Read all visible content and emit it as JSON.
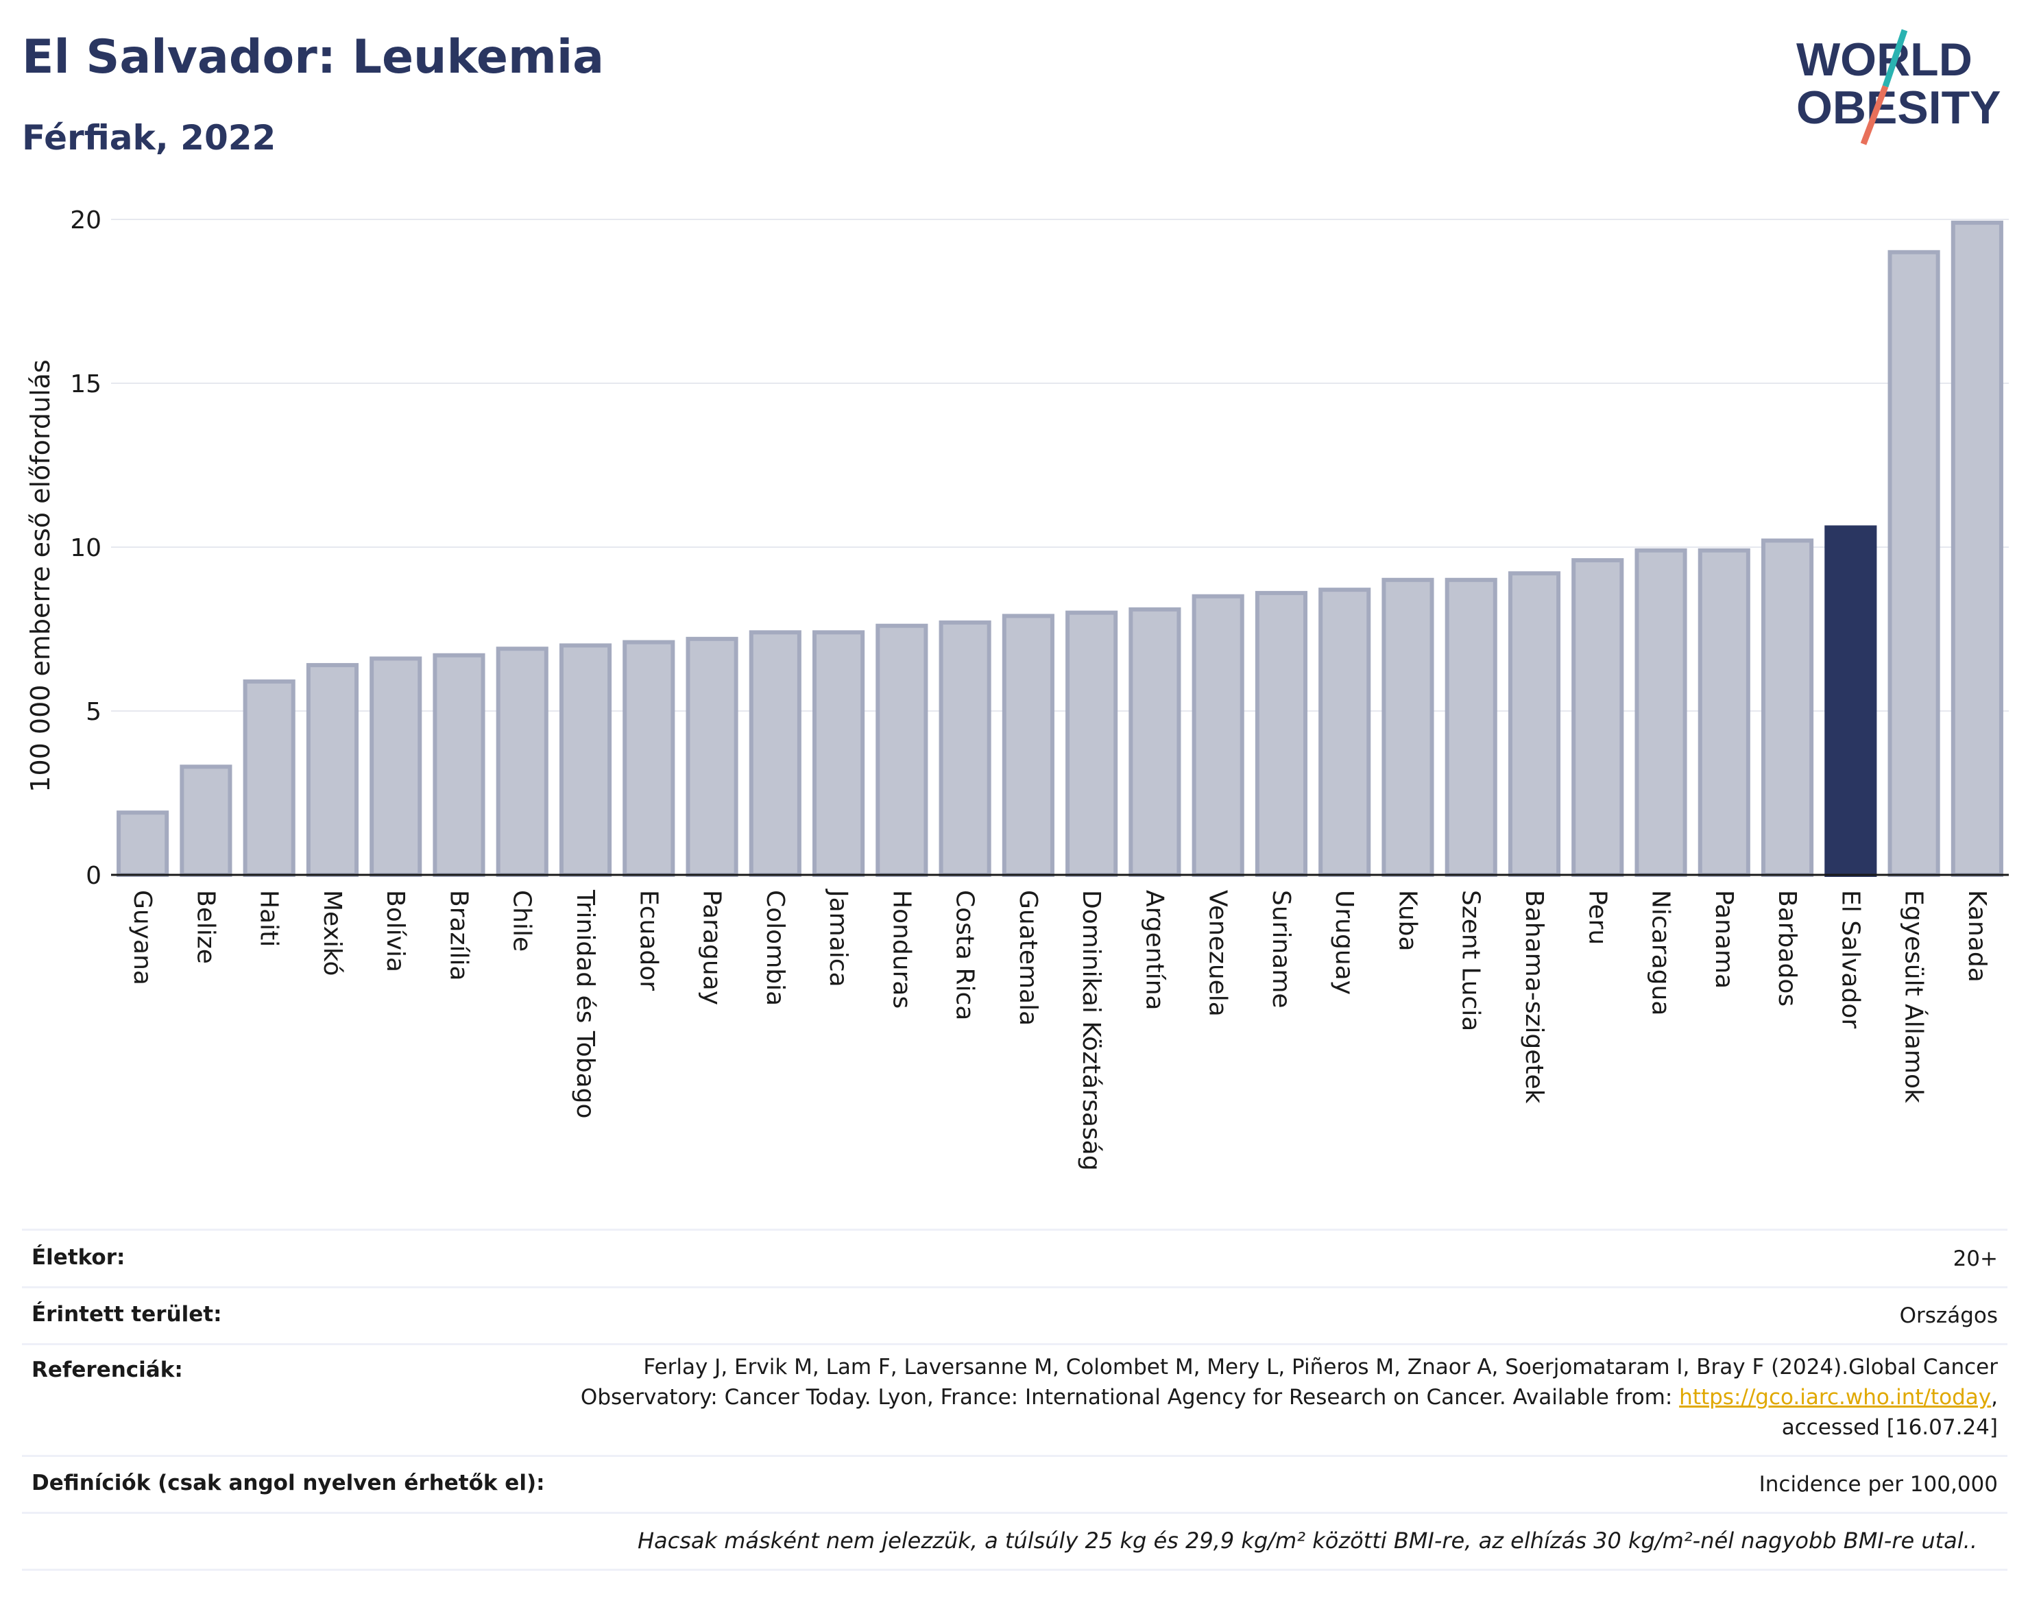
{
  "header": {
    "title": "El Salvador: Leukemia",
    "subtitle": "Férfiak, 2022"
  },
  "logo": {
    "line1": "WORLD",
    "line2": "OBESITY",
    "colors": {
      "text": "#2a3661",
      "slash_teal": "#2ab3b1",
      "slash_coral": "#e8705a"
    }
  },
  "chart_data": {
    "type": "bar",
    "title": "",
    "xlabel": "",
    "ylabel": "100 000 emberre eső előfordulás",
    "ylim": [
      0,
      20
    ],
    "yticks": [
      0,
      5,
      10,
      15,
      20
    ],
    "grid": true,
    "highlight": "El Salvador",
    "colors": {
      "bar": "#c0c4d1",
      "bar_border": "#a4aabf",
      "highlight": "#2a3661",
      "grid": "#e6e8ef",
      "axis": "#1a1a1a"
    },
    "categories": [
      "Guyana",
      "Belize",
      "Haiti",
      "Mexikó",
      "Bolívia",
      "Brazília",
      "Chile",
      "Trinidad és Tobago",
      "Ecuador",
      "Paraguay",
      "Colombia",
      "Jamaica",
      "Honduras",
      "Costa Rica",
      "Guatemala",
      "Dominikai Köztársaság",
      "Argentína",
      "Venezuela",
      "Suriname",
      "Uruguay",
      "Kuba",
      "Szent Lucia",
      "Bahama-szigetek",
      "Peru",
      "Nicaragua",
      "Panama",
      "Barbados",
      "El Salvador",
      "Egyesült Államok",
      "Kanada"
    ],
    "values": [
      1.9,
      3.3,
      5.9,
      6.4,
      6.6,
      6.7,
      6.9,
      7.0,
      7.1,
      7.2,
      7.4,
      7.4,
      7.6,
      7.7,
      7.9,
      8.0,
      8.1,
      8.5,
      8.6,
      8.7,
      9.0,
      9.0,
      9.2,
      9.6,
      9.9,
      9.9,
      10.2,
      10.6,
      19.0,
      19.9
    ]
  },
  "info": {
    "age_label": "Életkor:",
    "age_value": "20+",
    "area_label": "Érintett terület:",
    "area_value": "Országos",
    "ref_label": "Referenciák:",
    "ref_line1": "Ferlay J, Ervik M, Lam F, Laversanne M, Colombet M, Mery L, Piñeros M, Znaor A, Soerjomataram I, Bray F (2024).Global Cancer",
    "ref_line2": "Observatory: Cancer Today. Lyon, France: International Agency for Research on Cancer. Available from:",
    "ref_link": "https://gco.iarc.who.int/today",
    "ref_line2_end": ",",
    "ref_line3": "accessed [16.07.24]",
    "def_label": "Definíciók (csak angol nyelven érhetők el):",
    "def_value": "Incidence per 100,000",
    "note": "Hacsak másként nem jelezzük, a túlsúly 25 kg és 29,9 kg/m² közötti BMI-re, az elhízás 30 kg/m²-nél nagyobb BMI-re utal.."
  }
}
